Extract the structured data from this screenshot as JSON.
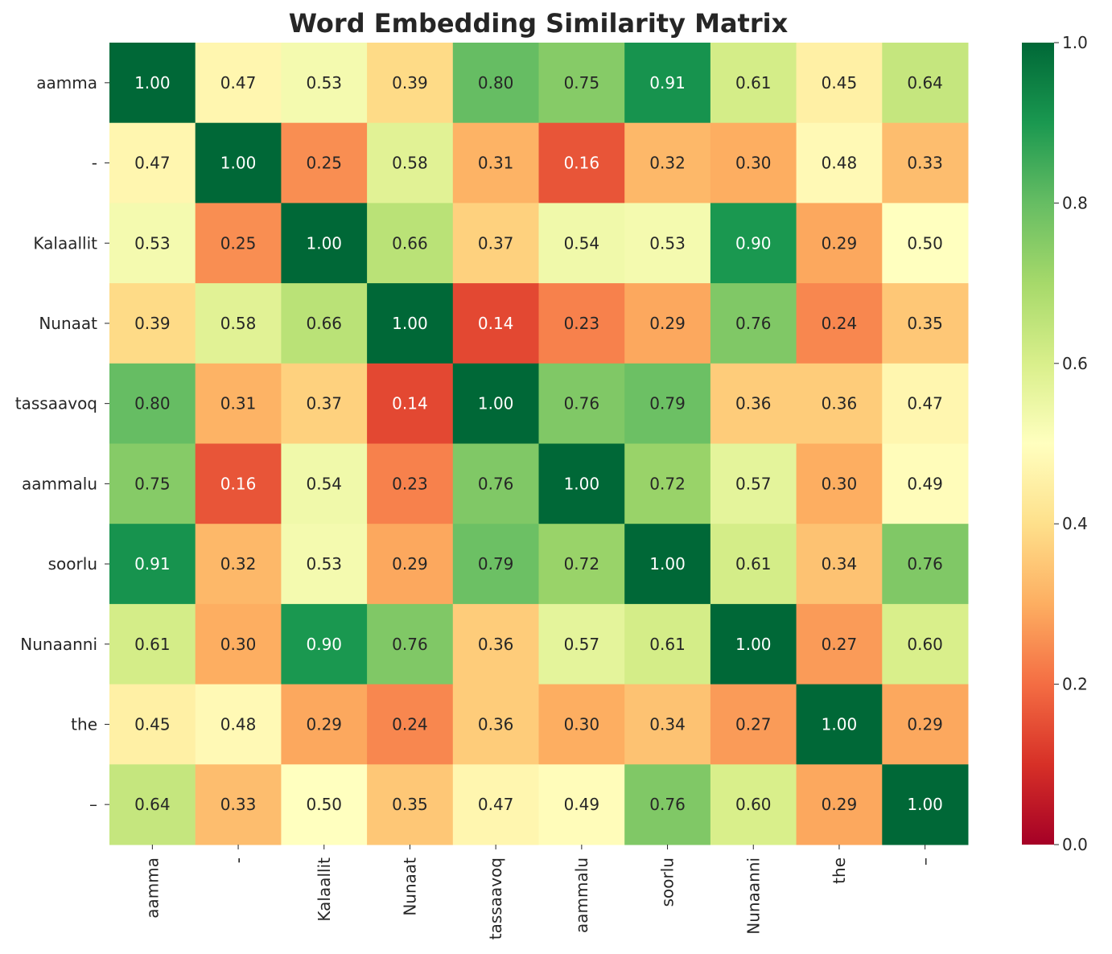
{
  "chart_data": {
    "type": "heatmap",
    "title": "Word Embedding Similarity Matrix",
    "xlabel": "",
    "ylabel": "",
    "row_labels": [
      "aamma",
      "-",
      "Kalaallit",
      "Nunaat",
      "tassaavoq",
      "aammalu",
      "soorlu",
      "Nunaanni",
      "the",
      "–"
    ],
    "col_labels": [
      "aamma",
      "-",
      "Kalaallit",
      "Nunaat",
      "tassaavoq",
      "aammalu",
      "soorlu",
      "Nunaanni",
      "the",
      "–"
    ],
    "values": [
      [
        1.0,
        0.47,
        0.53,
        0.39,
        0.8,
        0.75,
        0.91,
        0.61,
        0.45,
        0.64
      ],
      [
        0.47,
        1.0,
        0.25,
        0.58,
        0.31,
        0.16,
        0.32,
        0.3,
        0.48,
        0.33
      ],
      [
        0.53,
        0.25,
        1.0,
        0.66,
        0.37,
        0.54,
        0.53,
        0.9,
        0.29,
        0.5
      ],
      [
        0.39,
        0.58,
        0.66,
        1.0,
        0.14,
        0.23,
        0.29,
        0.76,
        0.24,
        0.35
      ],
      [
        0.8,
        0.31,
        0.37,
        0.14,
        1.0,
        0.76,
        0.79,
        0.36,
        0.36,
        0.47
      ],
      [
        0.75,
        0.16,
        0.54,
        0.23,
        0.76,
        1.0,
        0.72,
        0.57,
        0.3,
        0.49
      ],
      [
        0.91,
        0.32,
        0.53,
        0.29,
        0.79,
        0.72,
        1.0,
        0.61,
        0.34,
        0.76
      ],
      [
        0.61,
        0.3,
        0.9,
        0.76,
        0.36,
        0.57,
        0.61,
        1.0,
        0.27,
        0.6
      ],
      [
        0.45,
        0.48,
        0.29,
        0.24,
        0.36,
        0.3,
        0.34,
        0.27,
        1.0,
        0.29
      ],
      [
        0.64,
        0.33,
        0.5,
        0.35,
        0.47,
        0.49,
        0.76,
        0.6,
        0.29,
        1.0
      ]
    ],
    "value_format": "0.00",
    "colormap": "RdYlGn",
    "colormap_stops": [
      "#a50026",
      "#d73027",
      "#f46d43",
      "#fdae61",
      "#fee08b",
      "#ffffbf",
      "#d9ef8b",
      "#a6d96a",
      "#66bd63",
      "#1a9850",
      "#006837"
    ],
    "vmin": 0.0,
    "vmax": 1.0,
    "colorbar_ticks": [
      "0.0",
      "0.2",
      "0.4",
      "0.6",
      "0.8",
      "1.0"
    ],
    "grid": false,
    "legend": "colorbar-right"
  }
}
